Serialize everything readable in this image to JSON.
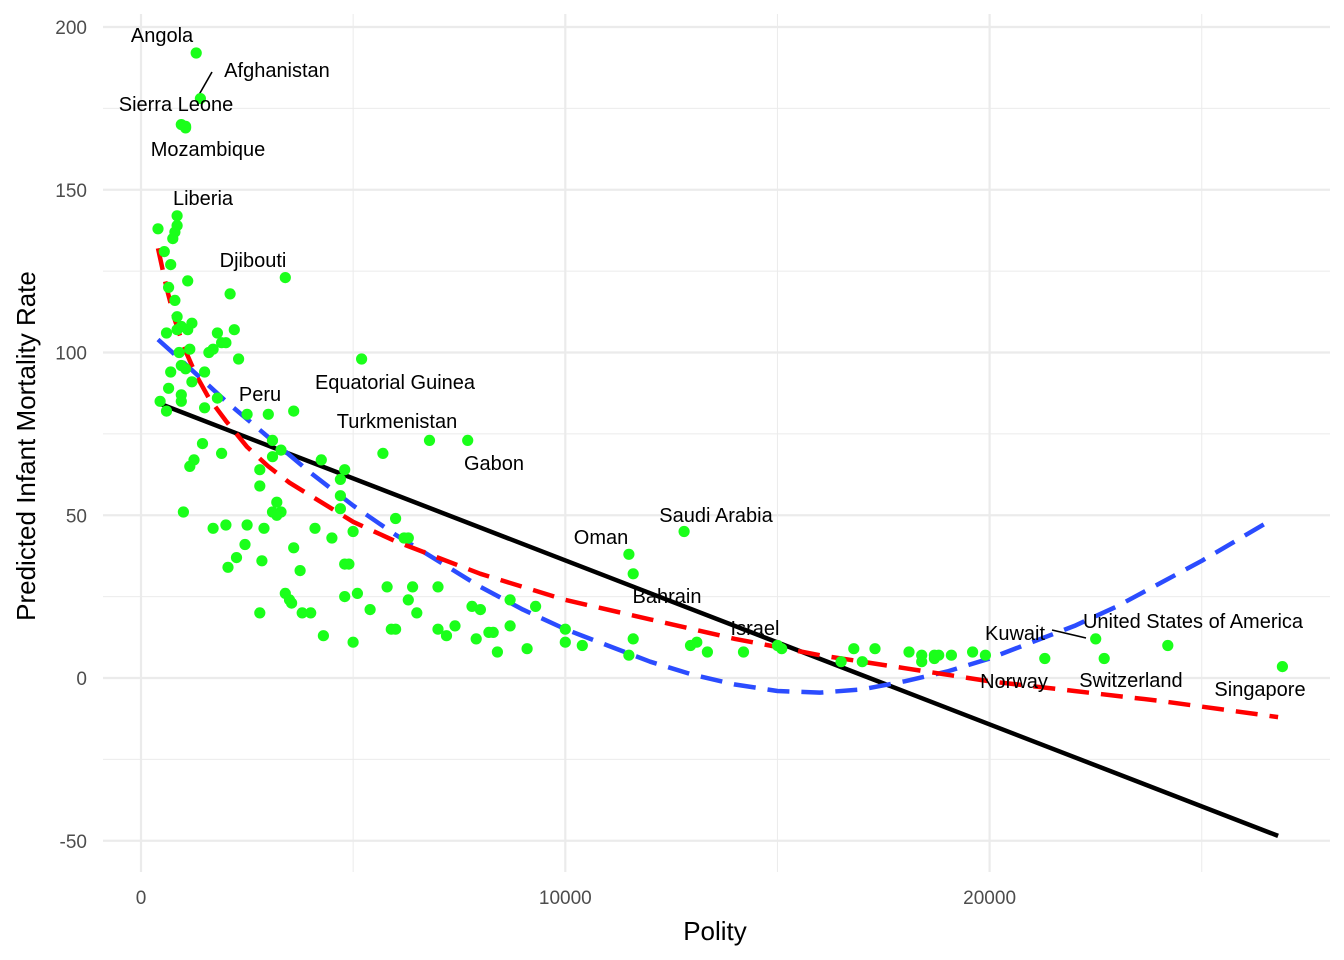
{
  "chart_data": {
    "type": "scatter",
    "xlabel": "Polity",
    "ylabel": "Predicted Infant Mortality Rate",
    "xlim": [
      -800,
      28000
    ],
    "ylim": [
      -60,
      202
    ],
    "x_ticks": [
      0,
      10000,
      20000
    ],
    "y_ticks": [
      -50,
      0,
      50,
      100,
      150,
      200
    ],
    "grid": true,
    "legend": "none",
    "colors": {
      "points": "#1aff1a",
      "linear": "#000000",
      "quadratic": "#2b4cff",
      "log": "#ff0000",
      "grid": "#ebebeb"
    },
    "points": [
      [
        1300,
        192
      ],
      [
        1400,
        178
      ],
      [
        950,
        170
      ],
      [
        1050,
        169.5
      ],
      [
        1050,
        169
      ],
      [
        850,
        142
      ],
      [
        850,
        139
      ],
      [
        800,
        137
      ],
      [
        750,
        135
      ],
      [
        400,
        138
      ],
      [
        550,
        131
      ],
      [
        700,
        127
      ],
      [
        650,
        120
      ],
      [
        800,
        116
      ],
      [
        1100,
        122
      ],
      [
        850,
        111
      ],
      [
        950,
        108
      ],
      [
        850,
        107
      ],
      [
        1100,
        107
      ],
      [
        600,
        106
      ],
      [
        1200,
        109
      ],
      [
        1150,
        101
      ],
      [
        900,
        100
      ],
      [
        950,
        96
      ],
      [
        1050,
        95
      ],
      [
        700,
        94
      ],
      [
        1500,
        94
      ],
      [
        1200,
        91
      ],
      [
        650,
        89
      ],
      [
        950,
        87
      ],
      [
        950,
        85
      ],
      [
        450,
        85
      ],
      [
        600,
        82
      ],
      [
        1500,
        83
      ],
      [
        1250,
        67
      ],
      [
        1150,
        65
      ],
      [
        1450,
        72
      ],
      [
        1000,
        51
      ],
      [
        2100,
        118
      ],
      [
        2200,
        107
      ],
      [
        1800,
        106
      ],
      [
        1900,
        103
      ],
      [
        2000,
        103
      ],
      [
        1700,
        101
      ],
      [
        1600,
        100
      ],
      [
        2300,
        98
      ],
      [
        1800,
        86
      ],
      [
        2500,
        81
      ],
      [
        3000,
        81
      ],
      [
        3600,
        82
      ],
      [
        3400,
        123
      ],
      [
        3100,
        73
      ],
      [
        3300,
        70
      ],
      [
        1900,
        69
      ],
      [
        3100,
        68
      ],
      [
        2000,
        47
      ],
      [
        1700,
        46
      ],
      [
        2500,
        47
      ],
      [
        2900,
        46
      ],
      [
        3300,
        51
      ],
      [
        3200,
        54
      ],
      [
        3100,
        51
      ],
      [
        2800,
        59
      ],
      [
        2800,
        64
      ],
      [
        2450,
        41
      ],
      [
        2850,
        36
      ],
      [
        2250,
        37
      ],
      [
        2050,
        34
      ],
      [
        3200,
        50
      ],
      [
        3600,
        40
      ],
      [
        3400,
        26
      ],
      [
        3550,
        23
      ],
      [
        3750,
        33
      ],
      [
        2800,
        20
      ],
      [
        3500,
        24
      ],
      [
        3800,
        20
      ],
      [
        4000,
        20
      ],
      [
        4100,
        46
      ],
      [
        4500,
        43
      ],
      [
        4300,
        13
      ],
      [
        5200,
        98
      ],
      [
        4250,
        67
      ],
      [
        4800,
        64
      ],
      [
        4700,
        61
      ],
      [
        4700,
        56
      ],
      [
        4700,
        52
      ],
      [
        4800,
        35
      ],
      [
        4900,
        35
      ],
      [
        5000,
        45
      ],
      [
        5700,
        69
      ],
      [
        6000,
        49
      ],
      [
        6300,
        43
      ],
      [
        6200,
        43
      ],
      [
        5100,
        26
      ],
      [
        4800,
        25
      ],
      [
        5400,
        21
      ],
      [
        5800,
        28
      ],
      [
        5900,
        15
      ],
      [
        6000,
        15
      ],
      [
        6300,
        24
      ],
      [
        6400,
        28
      ],
      [
        6500,
        20
      ],
      [
        5000,
        11
      ],
      [
        6800,
        73
      ],
      [
        7700,
        73
      ],
      [
        7000,
        28
      ],
      [
        7000,
        15
      ],
      [
        7200,
        13
      ],
      [
        7400,
        16
      ],
      [
        7800,
        22
      ],
      [
        7900,
        12
      ],
      [
        8000,
        21
      ],
      [
        8200,
        14
      ],
      [
        8300,
        14
      ],
      [
        8400,
        8
      ],
      [
        8700,
        24
      ],
      [
        8700,
        16
      ],
      [
        9100,
        9
      ],
      [
        9300,
        22
      ],
      [
        10000,
        15
      ],
      [
        10000,
        11
      ],
      [
        10400,
        10
      ],
      [
        11500,
        38
      ],
      [
        11600,
        32
      ],
      [
        11600,
        12
      ],
      [
        11500,
        7
      ],
      [
        12800,
        45
      ],
      [
        12950,
        10
      ],
      [
        13100,
        11
      ],
      [
        13350,
        8
      ],
      [
        14200,
        8
      ],
      [
        15000,
        10
      ],
      [
        15100,
        9
      ],
      [
        16500,
        5
      ],
      [
        16800,
        9
      ],
      [
        17000,
        5
      ],
      [
        17300,
        9
      ],
      [
        18100,
        8
      ],
      [
        18400,
        7
      ],
      [
        18400,
        5
      ],
      [
        18700,
        7
      ],
      [
        18700,
        6
      ],
      [
        18800,
        7
      ],
      [
        19100,
        7
      ],
      [
        19600,
        8
      ],
      [
        19900,
        7
      ],
      [
        21300,
        6
      ],
      [
        22500,
        12
      ],
      [
        22700,
        6
      ],
      [
        24200,
        10
      ],
      [
        26900,
        3.5
      ]
    ],
    "fit_lines": [
      {
        "name": "",
        "color": "#000000",
        "dash": "solid",
        "x": [
          400,
          26800
        ],
        "y": [
          84.5,
          -48.5
        ]
      },
      {
        "name": "",
        "color": "#2b4cff",
        "dash": "dashed",
        "x": [
          400,
          1000,
          2000,
          3000,
          4000,
          5000,
          6000,
          7000,
          8000,
          9000,
          10000,
          11000,
          12000,
          13000,
          14000,
          15000,
          16000,
          17000,
          18000,
          19000,
          20000,
          21000,
          22000,
          23000,
          24000,
          25000,
          26700
        ],
        "y": [
          104,
          97,
          85,
          74,
          63,
          53,
          44,
          36,
          28,
          21,
          15,
          10,
          5,
          1,
          -2,
          -4,
          -4.5,
          -3.5,
          -1,
          2,
          6,
          11,
          16,
          22,
          29,
          36,
          49
        ]
      },
      {
        "name": "",
        "color": "#ff0000",
        "dash": "dashed",
        "x": [
          400,
          600,
          800,
          1000,
          1300,
          1600,
          2000,
          2500,
          3000,
          3500,
          4000,
          5000,
          6000,
          7000,
          8000,
          9000,
          10000,
          12000,
          14000,
          16000,
          18000,
          20000,
          22000,
          24000,
          26800
        ],
        "y": [
          132,
          120,
          110,
          102,
          93,
          86,
          79,
          71,
          65,
          60,
          56,
          48,
          42,
          37,
          32,
          28,
          24,
          18,
          12,
          7,
          3,
          -1,
          -4,
          -7,
          -12
        ]
      }
    ],
    "annotations": [
      {
        "text": "Angola",
        "x": 1300,
        "y": 192
      },
      {
        "text": "Afghanistan",
        "x": 1400,
        "y": 178
      },
      {
        "text": "Sierra Leone",
        "x": 950,
        "y": 170
      },
      {
        "text": "Mozambique",
        "x": 1050,
        "y": 169
      },
      {
        "text": "Liberia",
        "x": 850,
        "y": 142
      },
      {
        "text": "Djibouti",
        "x": 3400,
        "y": 123
      },
      {
        "text": "Equatorial Guinea",
        "x": 5200,
        "y": 98
      },
      {
        "text": "Peru",
        "x": 3100,
        "y": 81
      },
      {
        "text": "Turkmenistan",
        "x": 6800,
        "y": 73
      },
      {
        "text": "Gabon",
        "x": 7700,
        "y": 73
      },
      {
        "text": "Saudi Arabia",
        "x": 12800,
        "y": 45
      },
      {
        "text": "Oman",
        "x": 11500,
        "y": 38
      },
      {
        "text": "Bahrain",
        "x": 11600,
        "y": 32
      },
      {
        "text": "Israel",
        "x": 14200,
        "y": 8
      },
      {
        "text": "Kuwait",
        "x": 22500,
        "y": 12
      },
      {
        "text": "United States of America",
        "x": 22500,
        "y": 12
      },
      {
        "text": "Norway",
        "x": 19900,
        "y": 7
      },
      {
        "text": "Switzerland",
        "x": 22700,
        "y": 6
      },
      {
        "text": "Singapore",
        "x": 26900,
        "y": 3.5
      }
    ]
  }
}
